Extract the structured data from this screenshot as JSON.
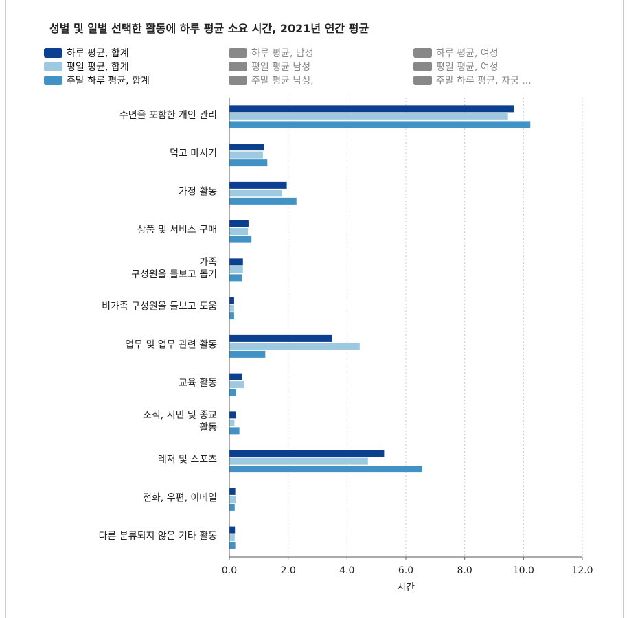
{
  "title": "성별 및 일별 선택한 활동에 하루 평균 소요 시간, 2021년 연간 평균",
  "legend": [
    {
      "label": "하루 평균, 합계",
      "color": "#0b3f8f",
      "active": true
    },
    {
      "label": "하루 평균, 남성",
      "color": "#888888",
      "active": false
    },
    {
      "label": "하루 평균, 여성",
      "color": "#888888",
      "active": false
    },
    {
      "label": "평일 평균, 합계",
      "color": "#9ecae1",
      "active": true
    },
    {
      "label": "평일 평균 남성",
      "color": "#888888",
      "active": false
    },
    {
      "label": "평일 평균, 여성",
      "color": "#888888",
      "active": false
    },
    {
      "label": "주말 하루 평균, 합계",
      "color": "#4292c6",
      "active": true
    },
    {
      "label": "주말 평균 남성,",
      "color": "#888888",
      "active": false
    },
    {
      "label": "주말 하루 평균, 자궁 ...",
      "color": "#888888",
      "active": false
    }
  ],
  "chart_data": {
    "type": "bar",
    "orientation": "horizontal",
    "title": "성별 및 일별 선택한 활동에 하루 평균 소요 시간, 2021년 연간 평균",
    "xlabel": "시간",
    "ylabel": "",
    "xlim": [
      0,
      12
    ],
    "xticks": [
      "0.0",
      "2.0",
      "4.0",
      "6.0",
      "8.0",
      "10.0",
      "12.0"
    ],
    "grid": "vertical-dotted",
    "legend_position": "top",
    "categories": [
      [
        "수면을 포함한 개인 관리"
      ],
      [
        "먹고 마시기"
      ],
      [
        "가정 활동"
      ],
      [
        "상품 및 서비스 구매"
      ],
      [
        "가족",
        "구성원을 돌보고 돕기"
      ],
      [
        "비가족 구성원을 돌보고 도움"
      ],
      [
        "업무 및 업무 관련 활동"
      ],
      [
        "교육 활동"
      ],
      [
        "조직, 시민 및 종교",
        "활동"
      ],
      [
        "레저 및 스포츠"
      ],
      [
        "전화, 우편, 이메일"
      ],
      [
        "다른 분류되지 않은 기타 활동"
      ]
    ],
    "series": [
      {
        "name": "하루 평균, 합계",
        "color": "#0b3f8f",
        "values": [
          9.67,
          1.17,
          1.94,
          0.64,
          0.45,
          0.15,
          3.49,
          0.42,
          0.21,
          5.25,
          0.19,
          0.18
        ]
      },
      {
        "name": "평일 평균, 합계",
        "color": "#9ecae1",
        "values": [
          9.46,
          1.13,
          1.77,
          0.62,
          0.45,
          0.15,
          4.42,
          0.48,
          0.16,
          4.7,
          0.21,
          0.17
        ]
      },
      {
        "name": "주말 하루 평균, 합계",
        "color": "#4292c6",
        "values": [
          10.22,
          1.28,
          2.27,
          0.74,
          0.42,
          0.15,
          1.21,
          0.22,
          0.33,
          6.55,
          0.17,
          0.19
        ]
      }
    ]
  }
}
